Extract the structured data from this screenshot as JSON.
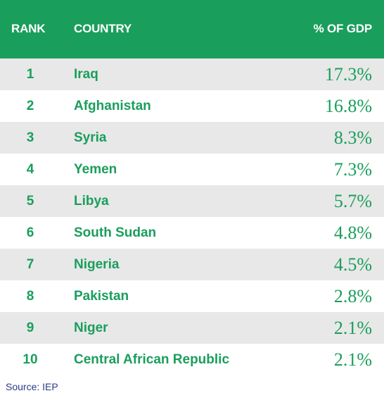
{
  "header": {
    "rank_label": "RANK",
    "country_label": "COUNTRY",
    "gdp_label": "% OF GDP"
  },
  "rows": [
    {
      "rank": "1",
      "country": "Iraq",
      "pct": "17.3%"
    },
    {
      "rank": "2",
      "country": "Afghanistan",
      "pct": "16.8%"
    },
    {
      "rank": "3",
      "country": "Syria",
      "pct": "8.3%"
    },
    {
      "rank": "4",
      "country": "Yemen",
      "pct": "7.3%"
    },
    {
      "rank": "5",
      "country": "Libya",
      "pct": "5.7%"
    },
    {
      "rank": "6",
      "country": "South Sudan",
      "pct": "4.8%"
    },
    {
      "rank": "7",
      "country": "Nigeria",
      "pct": "4.5%"
    },
    {
      "rank": "8",
      "country": "Pakistan",
      "pct": "2.8%"
    },
    {
      "rank": "9",
      "country": "Niger",
      "pct": "2.1%"
    },
    {
      "rank": "10",
      "country": "Central African Republic",
      "pct": "2.1%"
    }
  ],
  "source": "Source: IEP",
  "colors": {
    "accent": "#1a9e5c",
    "stripe": "#e8e8e8",
    "source_text": "#2a3a8a"
  }
}
